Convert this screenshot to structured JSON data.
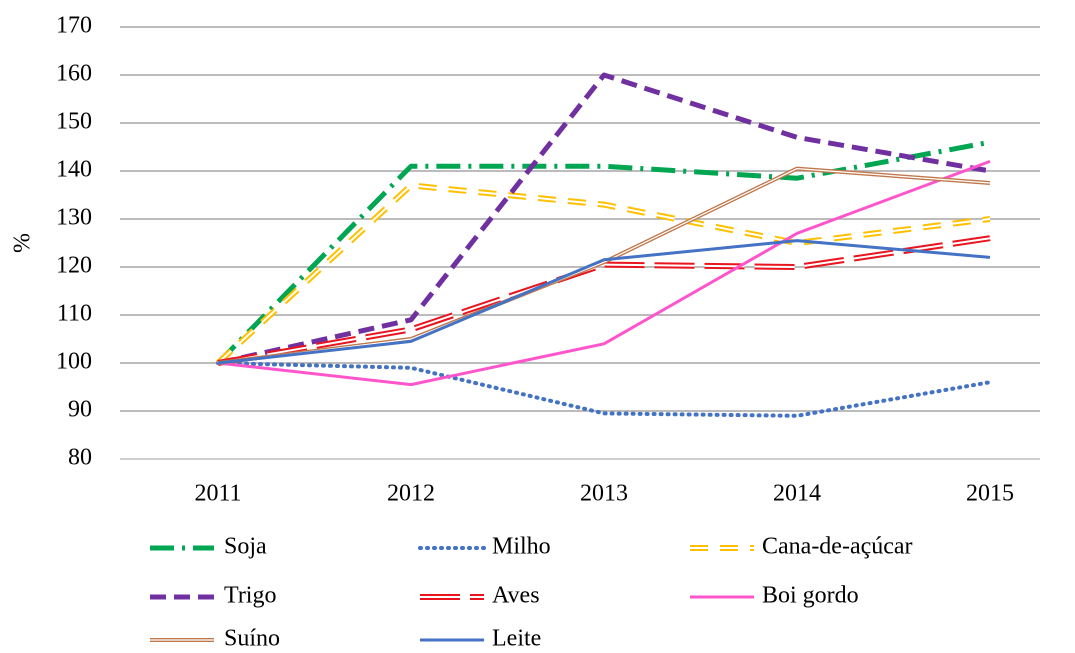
{
  "chart_data": {
    "type": "line",
    "ylabel": "%",
    "categories": [
      "2011",
      "2012",
      "2013",
      "2014",
      "2015"
    ],
    "ylim": [
      80,
      170
    ],
    "yticks": [
      80,
      90,
      100,
      110,
      120,
      130,
      140,
      150,
      160,
      170
    ],
    "grid": true,
    "series": [
      {
        "name": "Soja",
        "color": "#00a651",
        "style": "dashdot",
        "values": [
          100,
          141,
          141,
          138.5,
          146
        ]
      },
      {
        "name": "Milho",
        "color": "#4472c4",
        "style": "dotted",
        "values": [
          100,
          99,
          89.5,
          89,
          96
        ]
      },
      {
        "name": "Cana-de-açúcar",
        "color": "#ffc000",
        "style": "doubledash",
        "values": [
          100,
          137,
          133,
          125,
          130
        ]
      },
      {
        "name": "Trigo",
        "color": "#7030a0",
        "style": "dashed",
        "values": [
          100,
          109,
          160,
          147,
          140
        ]
      },
      {
        "name": "Aves",
        "color": "#e8141e",
        "style": "doubledashlong",
        "values": [
          100,
          107,
          120.5,
          120,
          126
        ]
      },
      {
        "name": "Boi gordo",
        "color": "#ff55cc",
        "style": "solid",
        "values": [
          100,
          95.5,
          104,
          127,
          142
        ]
      },
      {
        "name": "Suíno",
        "color": "#c0784c",
        "style": "double",
        "values": [
          100,
          105,
          121,
          140.5,
          137.5
        ]
      },
      {
        "name": "Leite",
        "color": "#4472c4",
        "style": "solid",
        "values": [
          100,
          104.5,
          121.5,
          125.5,
          122
        ]
      }
    ]
  }
}
